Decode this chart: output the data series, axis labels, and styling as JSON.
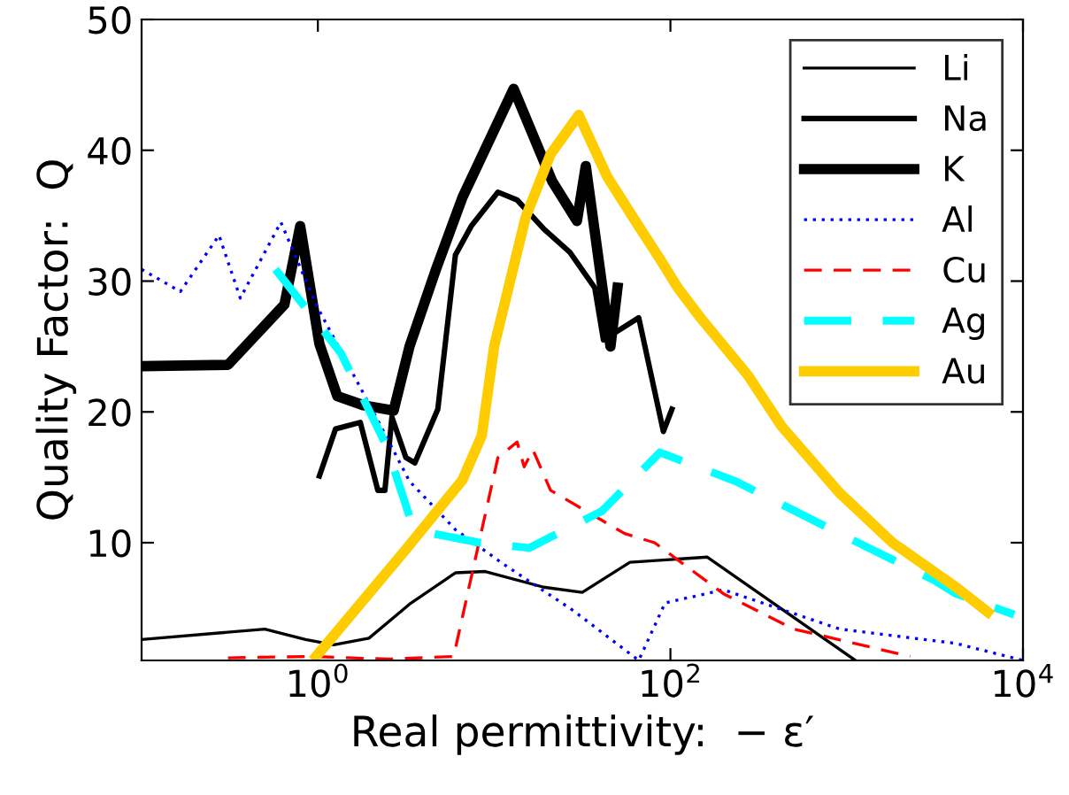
{
  "chart_data": {
    "type": "line",
    "xlabel": "Real permittivity:  − ε′",
    "ylabel": "Quality Factor:  Q",
    "log": "x",
    "xlim": [
      0.1,
      10000
    ],
    "ylim": [
      1,
      50
    ],
    "xticks": [
      {
        "value": 1,
        "label": "10$^{0}$"
      },
      {
        "value": 100,
        "label": "10$^{2}$"
      },
      {
        "value": 10000,
        "label": "10$^{4}$"
      }
    ],
    "yticks": [
      10,
      20,
      30,
      40,
      50
    ],
    "grid": false,
    "legend": "top right",
    "series": [
      {
        "name": "Li",
        "color": "#000000",
        "line_style": "solid",
        "x": [
          0.1,
          0.5,
          0.851,
          1.23,
          1.95,
          3.31,
          6.03,
          8.91,
          19.1,
          31.6,
          58.9,
          162,
          1120
        ],
        "values": [
          2.6,
          3.4,
          2.6,
          2.2,
          2.7,
          5.3,
          7.7,
          7.8,
          6.6,
          6.2,
          8.5,
          8.9,
          1
        ]
      },
      {
        "name": "Na",
        "color": "#000000",
        "line_style": "solid",
        "x": [
          1.02,
          1.26,
          1.74,
          2.19,
          2.4,
          2.63,
          3.16,
          3.55,
          4.79,
          6.03,
          7.41,
          10.5,
          13.5,
          19.1,
          26.9,
          37.2,
          41.7,
          66.1,
          91.2,
          102
        ],
        "values": [
          15.1,
          18.7,
          19.2,
          14,
          14,
          19.6,
          16.5,
          16.1,
          20.2,
          32,
          34.2,
          36.8,
          36.2,
          34,
          32.2,
          29.5,
          25.5,
          27.2,
          18.5,
          20.2
        ]
      },
      {
        "name": "K",
        "color": "#000000",
        "line_style": "solid",
        "x": [
          0.1,
          0.309,
          0.646,
          0.794,
          1.02,
          1.29,
          1.82,
          2.69,
          3.31,
          4.68,
          6.61,
          12.9,
          21.4,
          29.5,
          33.1,
          45.7,
          50.1
        ],
        "values": [
          23.5,
          23.6,
          28.2,
          34.2,
          25.2,
          21.2,
          20.5,
          20.1,
          25,
          30.9,
          36.4,
          44.7,
          37.6,
          34.6,
          38.8,
          25,
          29.5
        ]
      },
      {
        "name": "Al",
        "color": "#0000ff",
        "line_style": "dotted",
        "x": [
          0.1,
          0.166,
          0.275,
          0.363,
          0.617,
          0.977,
          2.14,
          3.31,
          6.03,
          11.2,
          28.2,
          66.1,
          93.3,
          200,
          912,
          4170,
          10000
        ],
        "values": [
          30.9,
          29.2,
          33.5,
          28.7,
          34.5,
          28.2,
          19.6,
          14.7,
          11,
          8.4,
          4.8,
          1,
          5.4,
          6.4,
          3.4,
          2.3,
          1
        ]
      },
      {
        "name": "Cu",
        "color": "#ff0000",
        "line_style": "dashed",
        "x": [
          0.309,
          0.912,
          2.51,
          5.89,
          10.5,
          13.5,
          14.8,
          16.6,
          20.9,
          55,
          81.3,
          200,
          501,
          2290
        ],
        "values": [
          1.2,
          1.3,
          1.1,
          1.3,
          16.5,
          17.7,
          15.8,
          17.1,
          14,
          10.7,
          10,
          6.1,
          3.4,
          1.3
        ]
      },
      {
        "name": "Ag",
        "color": "#00ffff",
        "line_style": "dashed",
        "x": [
          0.575,
          1.35,
          2.45,
          3.31,
          4.47,
          8.32,
          15.8,
          40.7,
          87.1,
          234,
          912,
          3160,
          4170,
          8910
        ],
        "values": [
          30.9,
          24.5,
          17.4,
          12,
          10.7,
          10,
          9.6,
          12.4,
          16.9,
          14.7,
          10.7,
          7.1,
          6.1,
          4.5
        ]
      },
      {
        "name": "Au",
        "color": "#ffcc00",
        "line_style": "solid",
        "x": [
          0.977,
          3.16,
          6.61,
          8.51,
          10,
          15.1,
          20.9,
          30.2,
          43.7,
          64.6,
          87.1,
          110,
          148,
          275,
          427,
          912,
          1820,
          4170,
          6310
        ],
        "values": [
          1.3,
          9.5,
          14.8,
          18.2,
          25,
          34.9,
          39.7,
          42.7,
          38,
          34.4,
          31.7,
          29.5,
          27.2,
          22.8,
          18.9,
          13.8,
          10,
          6.6,
          4.7
        ]
      }
    ]
  }
}
